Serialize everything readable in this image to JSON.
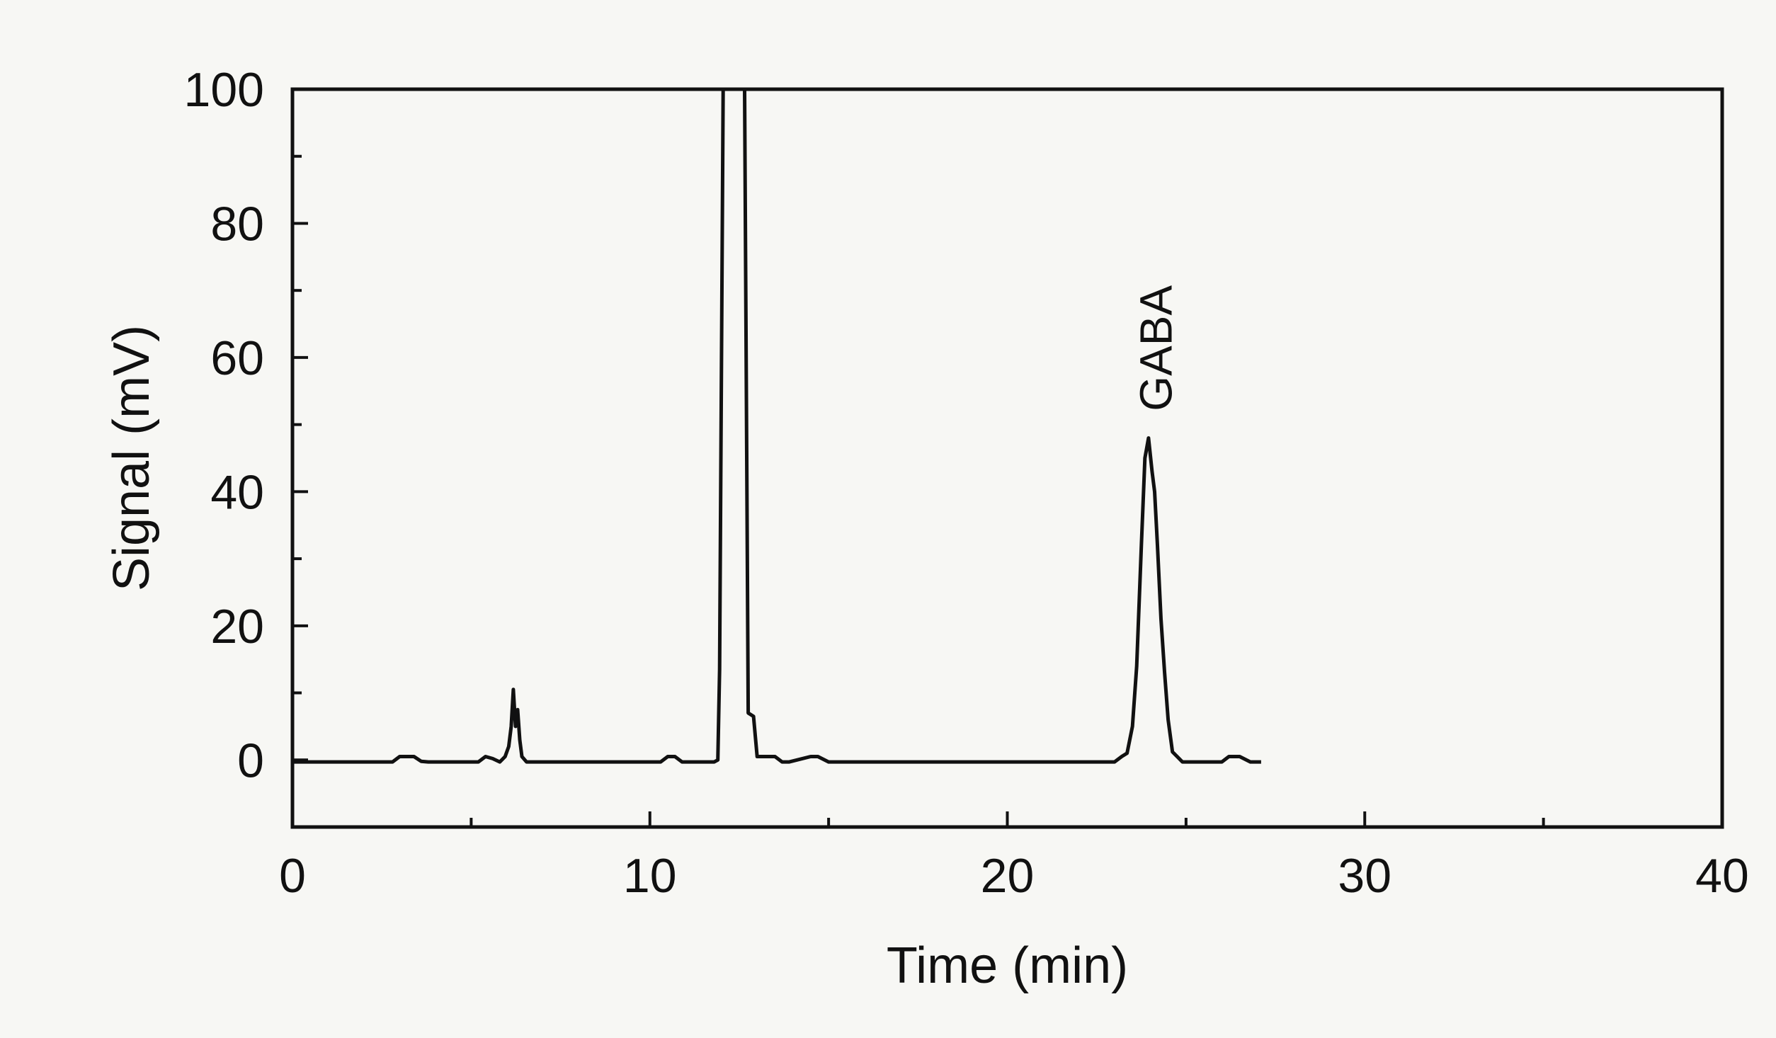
{
  "chart_data": {
    "type": "line",
    "title": "",
    "xlabel": "Time (min)",
    "ylabel": "Signal (mV)",
    "xlim": [
      0,
      40
    ],
    "ylim": [
      -10,
      100
    ],
    "x_ticks": [
      0,
      10,
      20,
      30,
      40
    ],
    "x_minor_ticks": [
      5,
      15,
      25,
      35
    ],
    "y_ticks": [
      0,
      20,
      40,
      60,
      80,
      100
    ],
    "y_minor_ticks": [
      10,
      30,
      50,
      70,
      90
    ],
    "grid": false,
    "legend": "none",
    "colors": {
      "line": "#111111",
      "background": "#f7f7f4"
    },
    "series": [
      {
        "x": [
          0,
          2.8,
          3.0,
          3.4,
          3.6,
          3.8,
          5.2,
          5.4,
          5.6,
          5.8,
          5.95,
          6.05,
          6.12,
          6.18,
          6.24,
          6.3,
          6.36,
          6.42,
          6.55,
          6.7,
          10.3,
          10.5,
          10.7,
          10.9,
          11.8,
          11.9,
          11.95,
          12.05,
          12.15,
          12.65,
          12.75,
          12.9,
          13.0,
          13.5,
          13.7,
          13.9,
          14.5,
          14.7,
          15.0,
          15.2,
          23.0,
          23.2,
          23.35,
          23.5,
          23.62,
          23.75,
          23.85,
          23.95,
          24.05,
          24.12,
          24.2,
          24.3,
          24.4,
          24.5,
          24.62,
          24.75,
          24.9,
          25.1,
          25.5,
          26.0,
          26.2,
          26.5,
          26.8,
          27.1
        ],
        "y": [
          -0.3,
          -0.3,
          0.5,
          0.5,
          -0.2,
          -0.3,
          -0.3,
          0.5,
          0.2,
          -0.3,
          0.5,
          2,
          5,
          10.5,
          5,
          7.5,
          3,
          0.5,
          -0.3,
          -0.3,
          -0.3,
          0.5,
          0.5,
          -0.3,
          -0.3,
          0,
          13.5,
          100,
          100,
          100,
          7,
          6.5,
          0.5,
          0.5,
          -0.3,
          -0.3,
          0.5,
          0.5,
          -0.3,
          -0.3,
          -0.3,
          0.5,
          1,
          5,
          14,
          32,
          45,
          48,
          43,
          40,
          32,
          21,
          13,
          6,
          1.2,
          0.5,
          -0.3,
          -0.3,
          -0.3,
          -0.3,
          0.5,
          0.5,
          -0.3,
          -0.3
        ]
      }
    ],
    "annotations": [
      {
        "text": "GABA",
        "x": 24.2,
        "y": 52,
        "rotation": -90
      }
    ]
  }
}
